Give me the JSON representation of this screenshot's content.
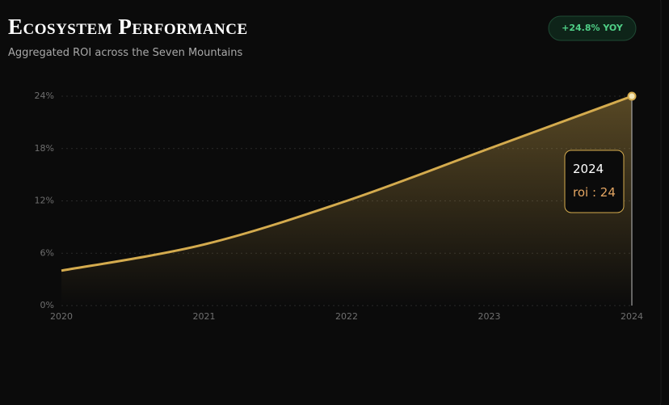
{
  "header": {
    "title": "Ecosystem Performance",
    "subtitle": "Aggregated ROI across the Seven Mountains",
    "badge": "+24.8% YOY"
  },
  "chart_data": {
    "type": "area",
    "categories": [
      "2020",
      "2021",
      "2022",
      "2023",
      "2024"
    ],
    "values": [
      4,
      7,
      12,
      18,
      24
    ],
    "color": "#d4ab4e",
    "ylim": [
      0,
      24
    ],
    "yticks": [
      {
        "value": 0,
        "label": "0%"
      },
      {
        "value": 6,
        "label": "6%"
      },
      {
        "value": 12,
        "label": "12%"
      },
      {
        "value": 18,
        "label": "18%"
      },
      {
        "value": 24,
        "label": "24%"
      }
    ],
    "grid": true,
    "tooltip": {
      "title": "2024",
      "text": "roi : 24"
    }
  }
}
